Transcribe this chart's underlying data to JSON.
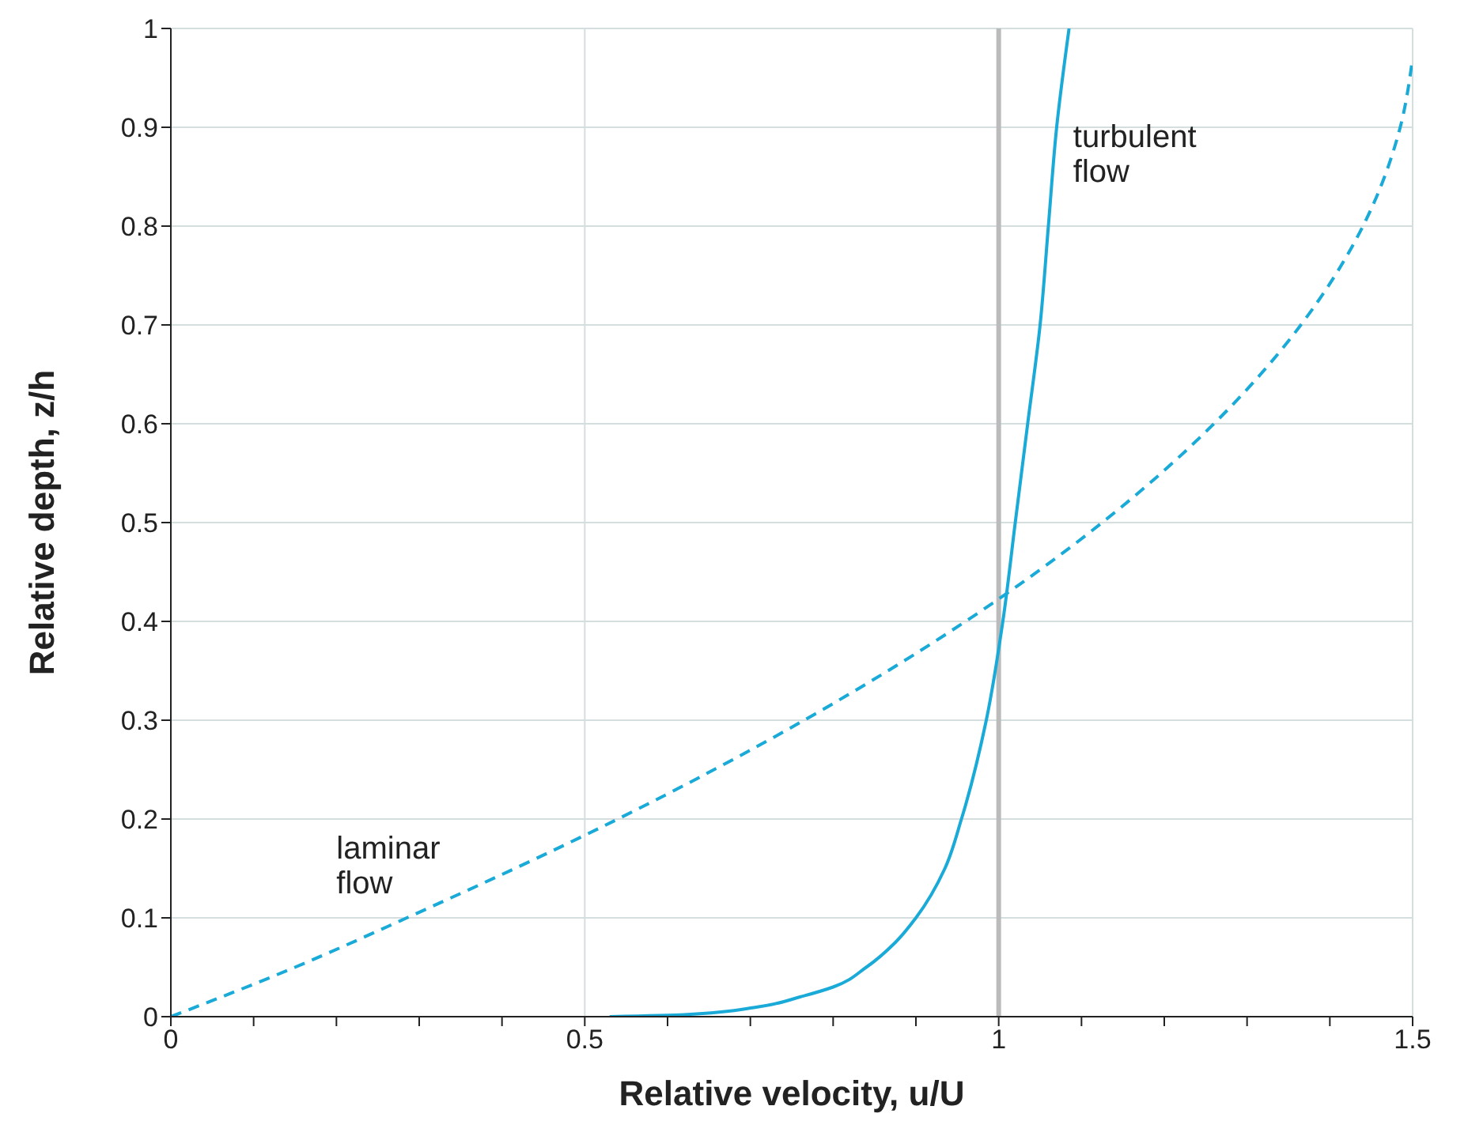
{
  "chart_data": {
    "type": "line",
    "xlabel": "Relative velocity, u/U",
    "ylabel": "Relative depth, z/h",
    "xlim": [
      0,
      1.5
    ],
    "ylim": [
      0,
      1
    ],
    "xticks": [
      0,
      {
        "value": 0.1,
        "label": null
      },
      {
        "value": 0.2,
        "label": null
      },
      {
        "value": 0.3,
        "label": null
      },
      {
        "value": 0.4,
        "label": null
      },
      {
        "value": 0.5,
        "label": "0.5"
      },
      {
        "value": 0.6,
        "label": null
      },
      {
        "value": 0.7,
        "label": null
      },
      {
        "value": 0.8,
        "label": null
      },
      {
        "value": 0.9,
        "label": null
      },
      1,
      {
        "value": 1.1,
        "label": null
      },
      {
        "value": 1.2,
        "label": null
      },
      {
        "value": 1.3,
        "label": null
      },
      {
        "value": 1.4,
        "label": null
      },
      {
        "value": 1.5,
        "label": "1.5"
      }
    ],
    "yticks": [
      0,
      0.1,
      0.2,
      0.3,
      0.4,
      0.5,
      0.6,
      0.7,
      0.8,
      0.9,
      1
    ],
    "grid": true,
    "marker": "none",
    "ref_lines": [
      {
        "axis": "x",
        "value": 1,
        "color": "#bbbbbb"
      }
    ],
    "series": [
      {
        "name": "turbulent flow",
        "color": "#1aaad8",
        "line_style": "solid",
        "x": [
          0.53,
          0.62,
          0.71,
          0.76,
          0.8,
          0.84,
          0.875,
          0.9,
          0.935,
          0.955,
          0.985,
          1.005,
          1.02,
          1.035,
          1.05,
          1.06,
          1.07,
          1.085
        ],
        "values": [
          0,
          0.002,
          0.01,
          0.02,
          0.03,
          0.05,
          0.075,
          0.1,
          0.15,
          0.2,
          0.3,
          0.4,
          0.5,
          0.6,
          0.7,
          0.8,
          0.9,
          1
        ]
      },
      {
        "name": "laminar flow",
        "color": "#1aaad8",
        "line_style": "dashed",
        "x": [
          0,
          0.15,
          0.285,
          0.54,
          0.765,
          0.96,
          1.125,
          1.26,
          1.365,
          1.44,
          1.485,
          1.5
        ],
        "values": [
          0,
          0.05,
          0.1,
          0.2,
          0.3,
          0.4,
          0.5,
          0.6,
          0.7,
          0.8,
          0.9,
          0.97
        ]
      }
    ]
  }
}
